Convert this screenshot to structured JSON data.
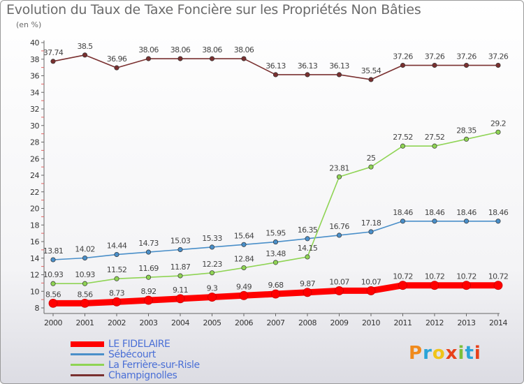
{
  "header": {
    "title": "Evolution du Taux de Taxe Foncière sur les Propriétés Non Bâties",
    "subtitle": "(en %)"
  },
  "logo": {
    "text": "Proxiti",
    "colors": [
      "#f08a1c",
      "#2aa4d8",
      "#f0c419",
      "#e8411b",
      "#7cbf3b",
      "#2aa4d8",
      "#e8411b"
    ]
  },
  "chart_data": {
    "type": "line",
    "x": [
      "2000",
      "2001",
      "2002",
      "2003",
      "2004",
      "2005",
      "2006",
      "2007",
      "2008",
      "2009",
      "2010",
      "2011",
      "2012",
      "2013",
      "2014"
    ],
    "ylim": [
      8,
      40
    ],
    "yticks": [
      8,
      10,
      12,
      14,
      16,
      18,
      20,
      22,
      24,
      26,
      28,
      30,
      32,
      34,
      36,
      38,
      40
    ],
    "grid": false,
    "legend_position": "bottom-left",
    "series": [
      {
        "name": "LE FIDELAIRE",
        "color": "#ff0000",
        "values": [
          8.56,
          8.56,
          8.73,
          8.92,
          9.11,
          9.3,
          9.49,
          9.68,
          9.87,
          10.07,
          10.07,
          10.72,
          10.72,
          10.72,
          10.72
        ],
        "labels": [
          "8.56",
          "8.56",
          "8.73",
          "8.92",
          "9.11",
          "9.3",
          "9.49",
          "9.68",
          "9.87",
          "10.07",
          "10.07",
          "10.72",
          "10.72",
          "10.72",
          "10.72"
        ]
      },
      {
        "name": "Sébécourt",
        "color": "#4a8fc9",
        "values": [
          13.81,
          14.02,
          14.44,
          14.73,
          15.03,
          15.33,
          15.64,
          15.95,
          16.35,
          16.76,
          17.18,
          18.46,
          18.46,
          18.46,
          18.46
        ],
        "labels": [
          "13.81",
          "14.02",
          "14.44",
          "14.73",
          "15.03",
          "15.33",
          "15.64",
          "15.95",
          "16.35",
          "16.76",
          "17.18",
          "18.46",
          "18.46",
          "18.46",
          "18.46"
        ]
      },
      {
        "name": "La Ferrière-sur-Risle",
        "color": "#8fd454",
        "values": [
          10.93,
          10.93,
          11.52,
          11.69,
          11.87,
          12.23,
          12.84,
          13.48,
          14.15,
          23.81,
          25,
          27.52,
          27.52,
          28.35,
          29.2
        ],
        "labels": [
          "10.93",
          "10.93",
          "11.52",
          "11.69",
          "11.87",
          "12.23",
          "12.84",
          "13.48",
          "14.15",
          "23.81",
          "25",
          "27.52",
          "27.52",
          "28.35",
          "29.2"
        ]
      },
      {
        "name": "Champignolles",
        "color": "#7a3030",
        "values": [
          37.74,
          38.5,
          36.96,
          38.06,
          38.06,
          38.06,
          38.06,
          36.13,
          36.13,
          36.13,
          35.54,
          37.26,
          37.26,
          37.26,
          37.26
        ],
        "labels": [
          "37.74",
          "38.5",
          "36.96",
          "38.06",
          "38.06",
          "38.06",
          "38.06",
          "36.13",
          "36.13",
          "36.13",
          "35.54",
          "37.26",
          "37.26",
          "37.26",
          "37.26"
        ]
      }
    ]
  }
}
